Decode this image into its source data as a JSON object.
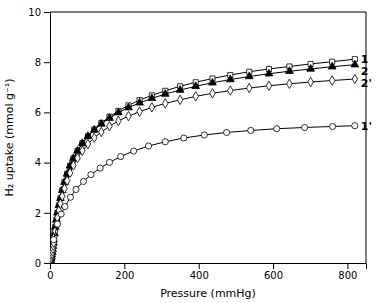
{
  "chart_data": {
    "type": "line",
    "xlabel": "Pressure (mmHg)",
    "ylabel": "H₂ uptake (mmol g⁻¹)",
    "xlim": [
      0,
      850
    ],
    "ylim": [
      0,
      10
    ],
    "xticks": [
      0,
      200,
      400,
      600,
      800
    ],
    "yticks": [
      0,
      2,
      4,
      6,
      8,
      10
    ],
    "grid": false,
    "series": [
      {
        "name": "1",
        "color": "#000000",
        "marker": "square-open",
        "x": [
          1,
          2,
          3,
          4,
          5,
          6,
          7,
          8,
          9,
          10,
          12,
          14,
          17,
          20,
          24,
          28,
          33,
          39,
          46,
          54,
          63,
          74,
          87,
          102,
          119,
          138,
          160,
          184,
          211,
          241,
          274,
          310,
          350,
          392,
          437,
          485,
          536,
          589,
          644,
          701,
          759,
          820
        ],
        "values": [
          0.05,
          0.1,
          0.17,
          0.25,
          0.34,
          0.44,
          0.55,
          0.67,
          0.8,
          0.93,
          1.18,
          1.43,
          1.72,
          2.0,
          2.3,
          2.58,
          2.9,
          3.22,
          3.55,
          3.87,
          4.17,
          4.47,
          4.77,
          5.05,
          5.32,
          5.58,
          5.83,
          6.06,
          6.28,
          6.49,
          6.68,
          6.86,
          7.04,
          7.2,
          7.35,
          7.49,
          7.62,
          7.73,
          7.83,
          7.93,
          8.02,
          8.12
        ]
      },
      {
        "name": "2",
        "color": "#000000",
        "marker": "triangle",
        "x": [
          1,
          2,
          3,
          4,
          5,
          6,
          7,
          8,
          9,
          10,
          12,
          14,
          17,
          20,
          24,
          28,
          33,
          39,
          46,
          54,
          63,
          74,
          87,
          102,
          119,
          138,
          160,
          184,
          211,
          241,
          274,
          310,
          350,
          392,
          437,
          485,
          536,
          589,
          644,
          701,
          759,
          820
        ],
        "values": [
          0.05,
          0.1,
          0.17,
          0.25,
          0.34,
          0.44,
          0.55,
          0.67,
          0.8,
          0.93,
          1.18,
          1.43,
          1.72,
          2.0,
          2.3,
          2.58,
          2.9,
          3.22,
          3.55,
          3.87,
          4.17,
          4.47,
          4.77,
          5.05,
          5.3,
          5.54,
          5.77,
          5.99,
          6.19,
          6.38,
          6.56,
          6.73,
          6.89,
          7.04,
          7.18,
          7.31,
          7.43,
          7.54,
          7.64,
          7.73,
          7.82,
          7.9
        ]
      },
      {
        "name": "2'",
        "color": "#000000",
        "marker": "diamond-open",
        "x": [
          1,
          2,
          3,
          4,
          5,
          6,
          7,
          8,
          9,
          10,
          12,
          14,
          17,
          20,
          24,
          28,
          33,
          39,
          46,
          54,
          63,
          74,
          87,
          102,
          119,
          138,
          160,
          184,
          211,
          241,
          274,
          310,
          350,
          392,
          437,
          485,
          536,
          589,
          644,
          701,
          759,
          820
        ],
        "values": [
          0.04,
          0.08,
          0.14,
          0.2,
          0.28,
          0.36,
          0.46,
          0.57,
          0.69,
          0.81,
          1.04,
          1.27,
          1.54,
          1.8,
          2.09,
          2.36,
          2.66,
          2.97,
          3.28,
          3.59,
          3.89,
          4.18,
          4.47,
          4.74,
          4.99,
          5.22,
          5.45,
          5.66,
          5.85,
          6.03,
          6.2,
          6.36,
          6.5,
          6.64,
          6.76,
          6.87,
          6.97,
          7.06,
          7.14,
          7.21,
          7.27,
          7.33
        ]
      },
      {
        "name": "1'",
        "color": "#000000",
        "marker": "circle-open",
        "x": [
          10,
          20,
          30,
          40,
          55,
          70,
          90,
          110,
          135,
          160,
          190,
          225,
          265,
          310,
          360,
          415,
          475,
          540,
          610,
          685,
          760,
          820
        ],
        "values": [
          0.93,
          1.55,
          1.95,
          2.25,
          2.62,
          2.93,
          3.25,
          3.52,
          3.78,
          4.01,
          4.24,
          4.46,
          4.66,
          4.83,
          4.98,
          5.1,
          5.2,
          5.28,
          5.35,
          5.4,
          5.44,
          5.47
        ]
      }
    ]
  }
}
